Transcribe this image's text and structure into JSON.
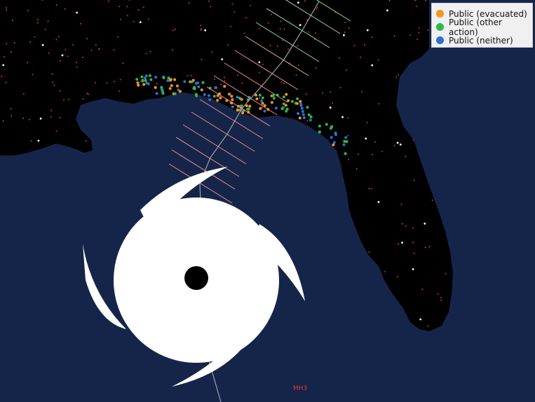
{
  "colors": {
    "ocean": "#15254a",
    "land": "#000000",
    "evacuated": "#f7941d",
    "other_action": "#2db84b",
    "neither": "#2e6fd6",
    "track": "#a0a0a0",
    "storm": "#ffffff",
    "intensity_label": "#e23838"
  },
  "legend": {
    "items": [
      {
        "label": "Public (evacuated)",
        "color": "#f7941d"
      },
      {
        "label": "Public (other action)",
        "color": "#2db84b"
      },
      {
        "label": "Public (neither)",
        "color": "#2e6fd6"
      }
    ]
  },
  "map": {
    "intensity_label": "MH3"
  }
}
